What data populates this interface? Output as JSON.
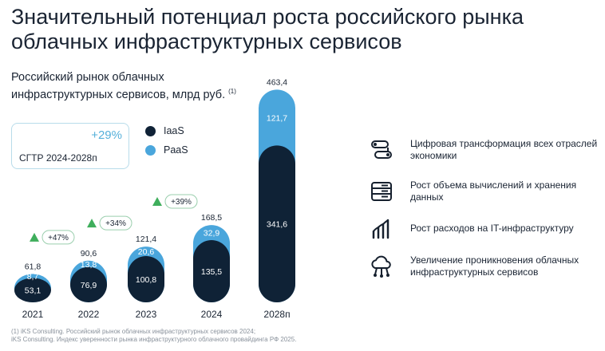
{
  "title": "Значительный потенциал роста российского рынка облачных инфраструктурных сервисов",
  "subtitle": "Российский рынок облачных инфраструктурных сервисов, млрд руб.",
  "subtitle_ref": "(1)",
  "cagr": {
    "value": "+29%",
    "label": "CГТР 2024-2028п"
  },
  "legend": [
    {
      "name": "IaaS",
      "color": "#0f2236"
    },
    {
      "name": "PaaS",
      "color": "#4aa6dc"
    }
  ],
  "chart_data": {
    "type": "bar",
    "stacked": true,
    "title": "Российский рынок облачных инфраструктурных сервисов, млрд руб.",
    "categories": [
      "2021",
      "2022",
      "2023",
      "2024",
      "2028п"
    ],
    "series": [
      {
        "name": "IaaS",
        "values": [
          53.1,
          76.9,
          100.8,
          135.5,
          341.6
        ],
        "labels": [
          "53,1",
          "76,9",
          "100,8",
          "135,5",
          "341,6"
        ]
      },
      {
        "name": "PaaS",
        "values": [
          8.7,
          13.8,
          20.6,
          32.9,
          121.7
        ],
        "labels": [
          "8,7",
          "13,8",
          "20,6",
          "32,9",
          "121,7"
        ]
      }
    ],
    "totals": [
      61.8,
      90.6,
      121.4,
      168.5,
      463.4
    ],
    "total_labels": [
      "61,8",
      "90,6",
      "121,4",
      "168,5",
      "463,4"
    ],
    "growth": [
      "+47%",
      "+34%",
      "+39%"
    ]
  },
  "drivers": [
    {
      "icon": "toggle-icon",
      "text": "Цифровая трансформация всех отраслей экономики"
    },
    {
      "icon": "server-icon",
      "text": "Рост объема вычислений и хранения данных"
    },
    {
      "icon": "growth-chart-icon",
      "text": "Рост расходов на IT-инфраструктуру"
    },
    {
      "icon": "cloud-network-icon",
      "text": "Увеличение проникновения облачных инфраструктурных сервисов"
    }
  ],
  "footnote": [
    "(1) iKS Consulting. Российский рынок облачных инфраструктурных сервисов 2024;",
    "iKS Consulting. Индекс уверенности рынка инфраструктурного облачного провайдинга РФ 2025."
  ]
}
